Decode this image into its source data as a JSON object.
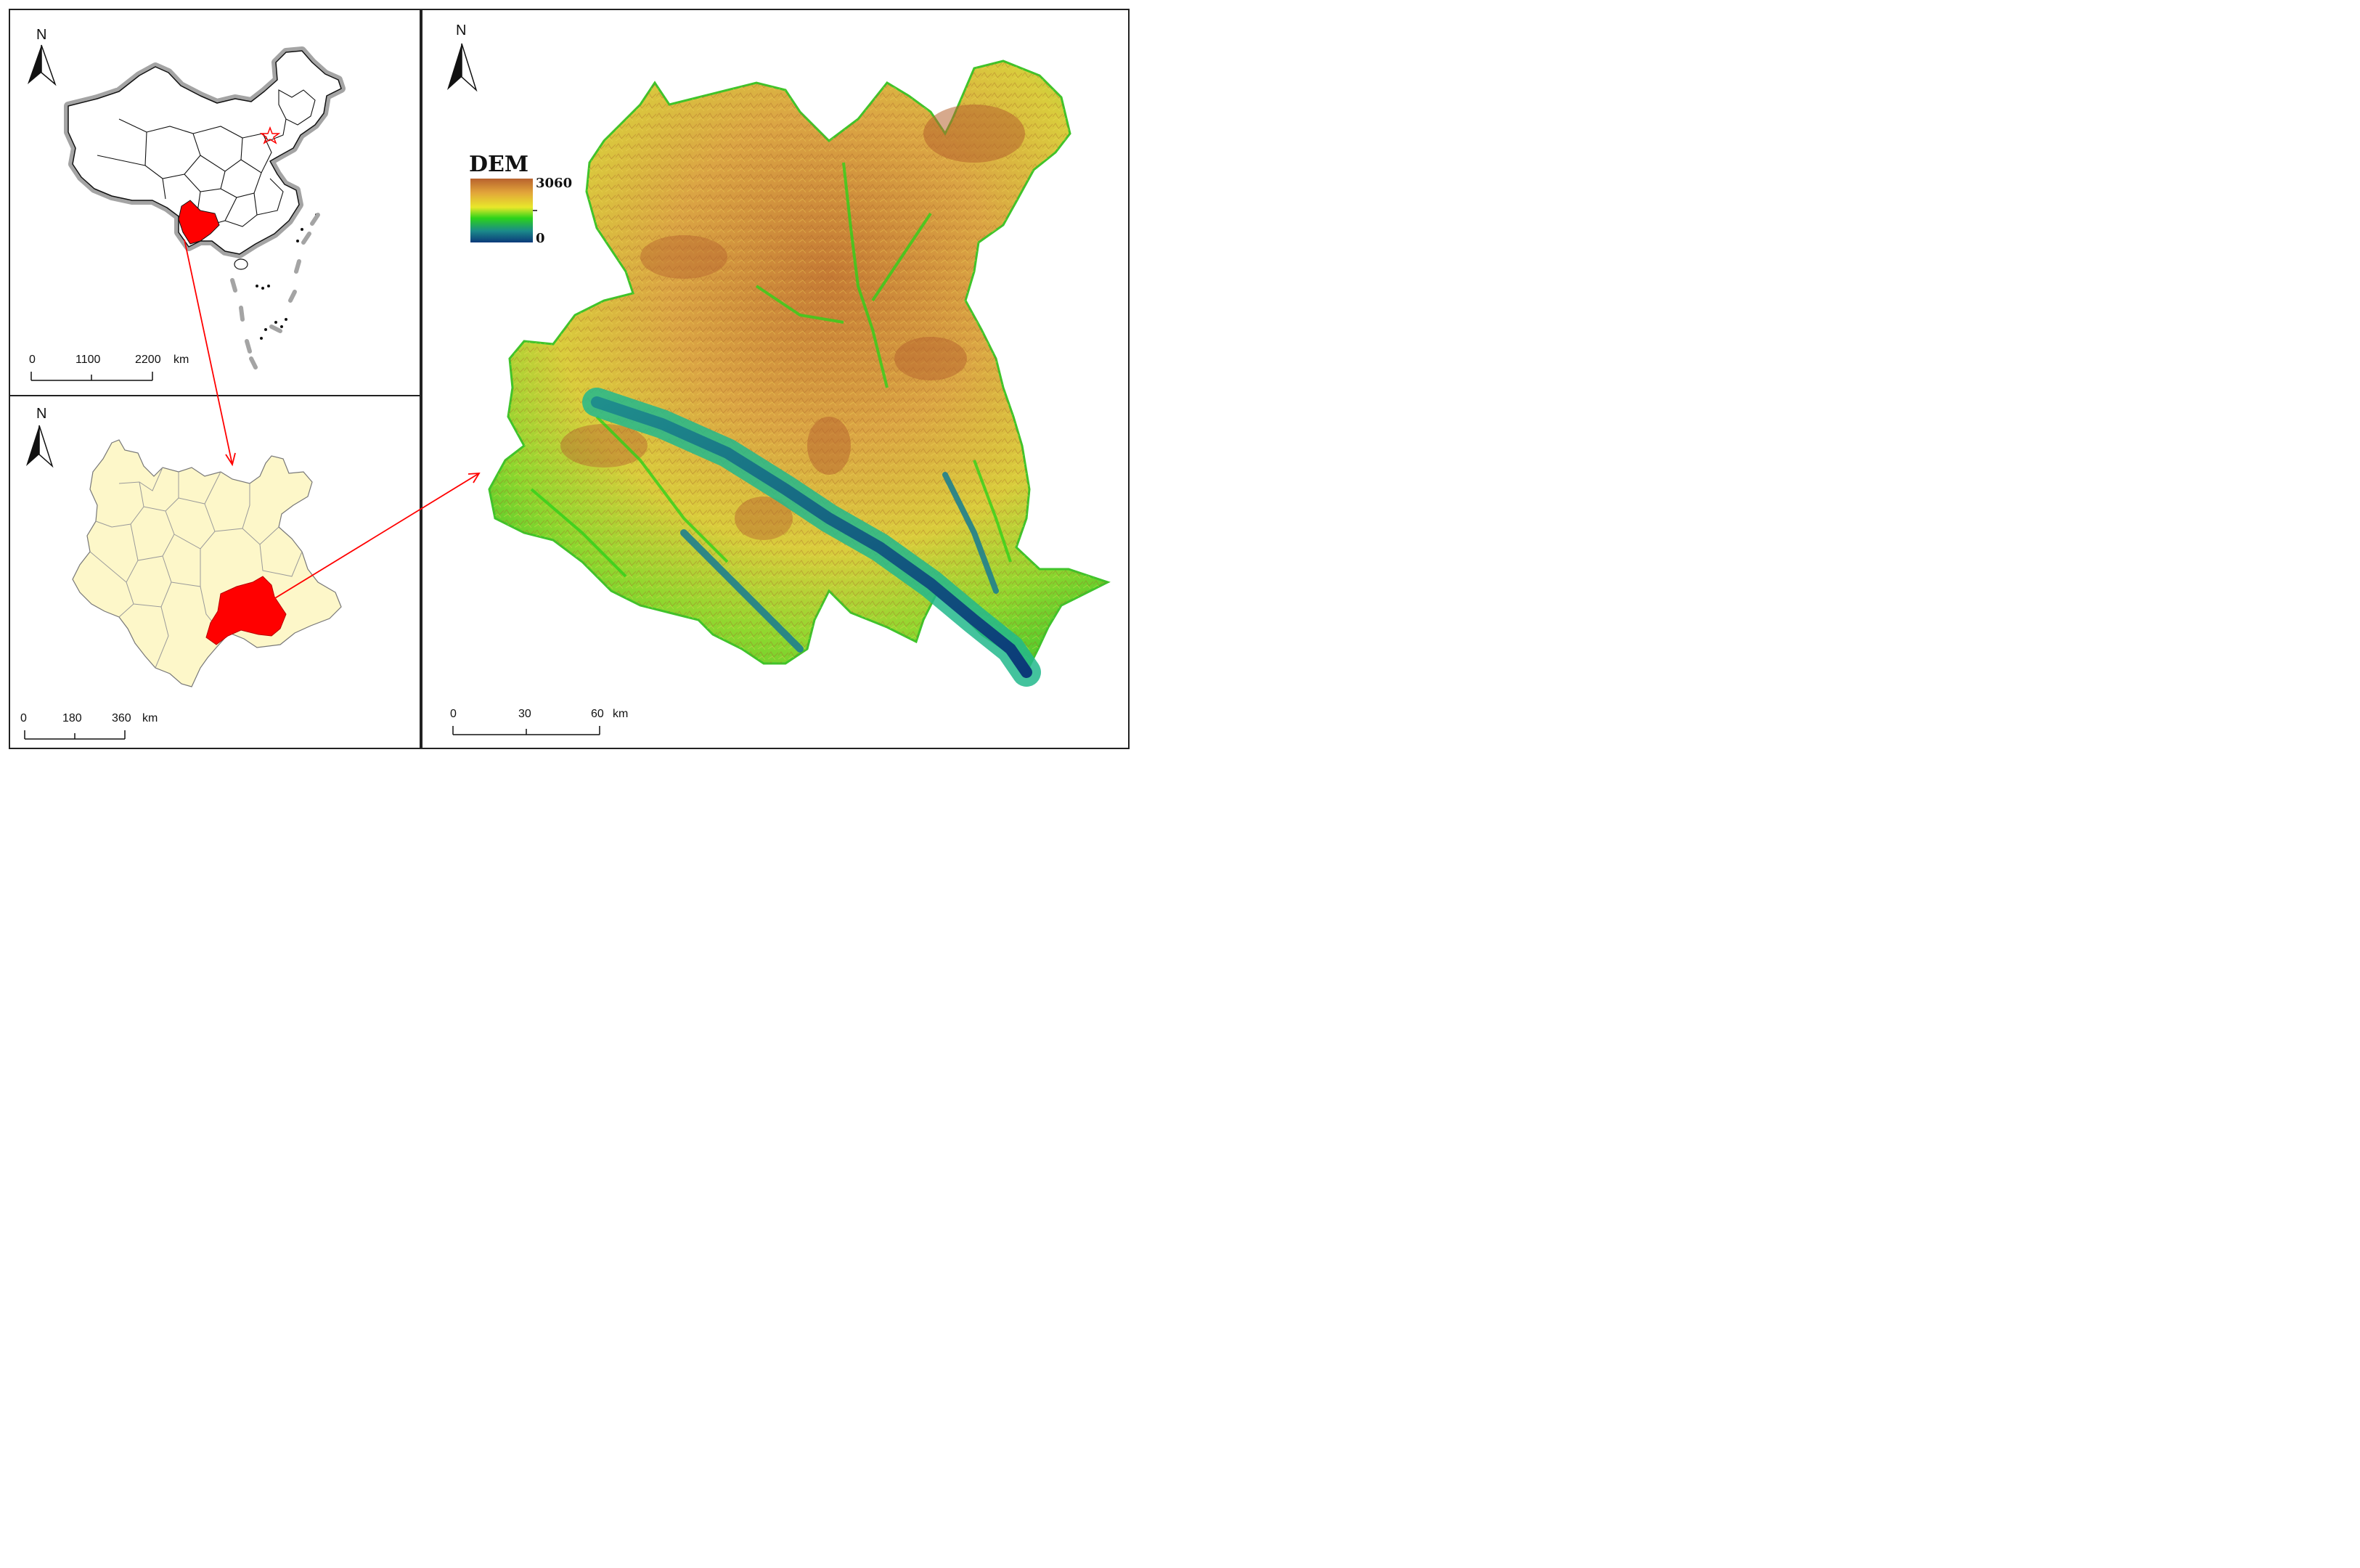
{
  "panels": {
    "china": {
      "north": "N",
      "scale": {
        "ticks": [
          "0",
          "1100",
          "2200"
        ],
        "unit": "km"
      }
    },
    "yunnan": {
      "north": "N",
      "scale": {
        "ticks": [
          "0",
          "180",
          "360"
        ],
        "unit": "km"
      }
    },
    "dem": {
      "north": "N",
      "legend": {
        "title": "DEM",
        "max": "3060",
        "min": "0"
      },
      "scale": {
        "ticks": [
          "0",
          "30",
          "60"
        ],
        "unit": "km"
      }
    }
  },
  "colors": {
    "highlight": "#ff0000",
    "yunnan_fill": "#fdf7c9",
    "border_halo": "#9e9e9e",
    "dem_low": "#1b3f7a",
    "dem_mid": "#32d81a",
    "dem_high": "#b8622e"
  },
  "icons": [
    "north-arrow-icon",
    "capital-star-icon"
  ]
}
